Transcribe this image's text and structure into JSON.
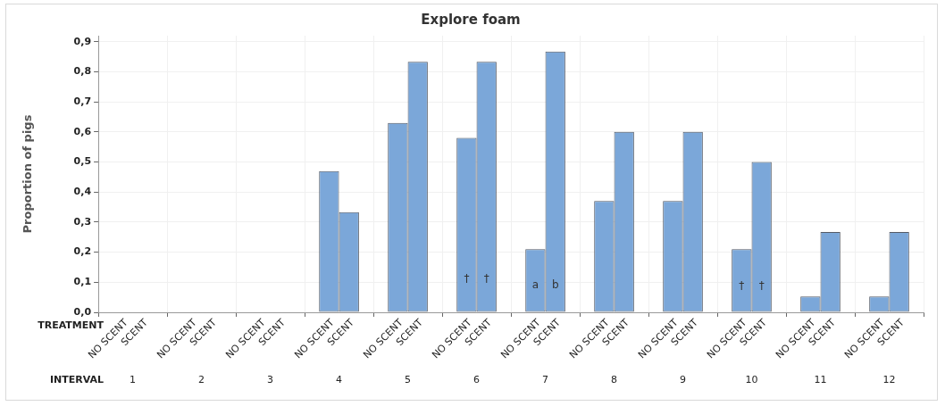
{
  "chart_data": {
    "type": "bar",
    "title": "Explore foam",
    "ylabel": "Proportion of pigs",
    "xlabel": "INTERVAL",
    "legend_title": "TREATMENT",
    "categories": [
      "1",
      "2",
      "3",
      "4",
      "5",
      "6",
      "7",
      "8",
      "9",
      "10",
      "11",
      "12"
    ],
    "series": [
      {
        "name": "NO SCENT",
        "color": "#7ba7d9",
        "values": [
          0,
          0,
          0,
          0.47,
          0.63,
          0.58,
          0.21,
          0.37,
          0.37,
          0.21,
          0.053,
          0.053
        ]
      },
      {
        "name": "SCENT",
        "color": "#7ba7d9",
        "values": [
          0,
          0,
          0,
          0.333,
          0.833,
          0.833,
          0.867,
          0.6,
          0.6,
          0.5,
          0.267,
          0.267
        ]
      }
    ],
    "ylim": [
      0,
      0.92
    ],
    "yticks": [
      {
        "value": 0,
        "label": "0,0"
      },
      {
        "value": 0.1,
        "label": "0,1"
      },
      {
        "value": 0.2,
        "label": "0,2"
      },
      {
        "value": 0.3,
        "label": "0,3"
      },
      {
        "value": 0.4,
        "label": "0,4"
      },
      {
        "value": 0.5,
        "label": "0,5"
      },
      {
        "value": 0.6,
        "label": "0,6"
      },
      {
        "value": 0.7,
        "label": "0,7"
      },
      {
        "value": 0.8,
        "label": "0,8"
      },
      {
        "value": 0.9,
        "label": "0,9"
      }
    ],
    "annotations": [
      {
        "text": "†",
        "x": "6",
        "y": 0.11
      },
      {
        "text": "†",
        "x": "6",
        "y": 0.11
      },
      {
        "text": "a",
        "x": "7",
        "y": 0.09
      },
      {
        "text": "b",
        "x": "7",
        "y": 0.09
      },
      {
        "text": "†",
        "x": "10",
        "y": 0.085
      },
      {
        "text": "†",
        "x": "10",
        "y": 0.085
      }
    ],
    "grid": true,
    "legend": false
  }
}
